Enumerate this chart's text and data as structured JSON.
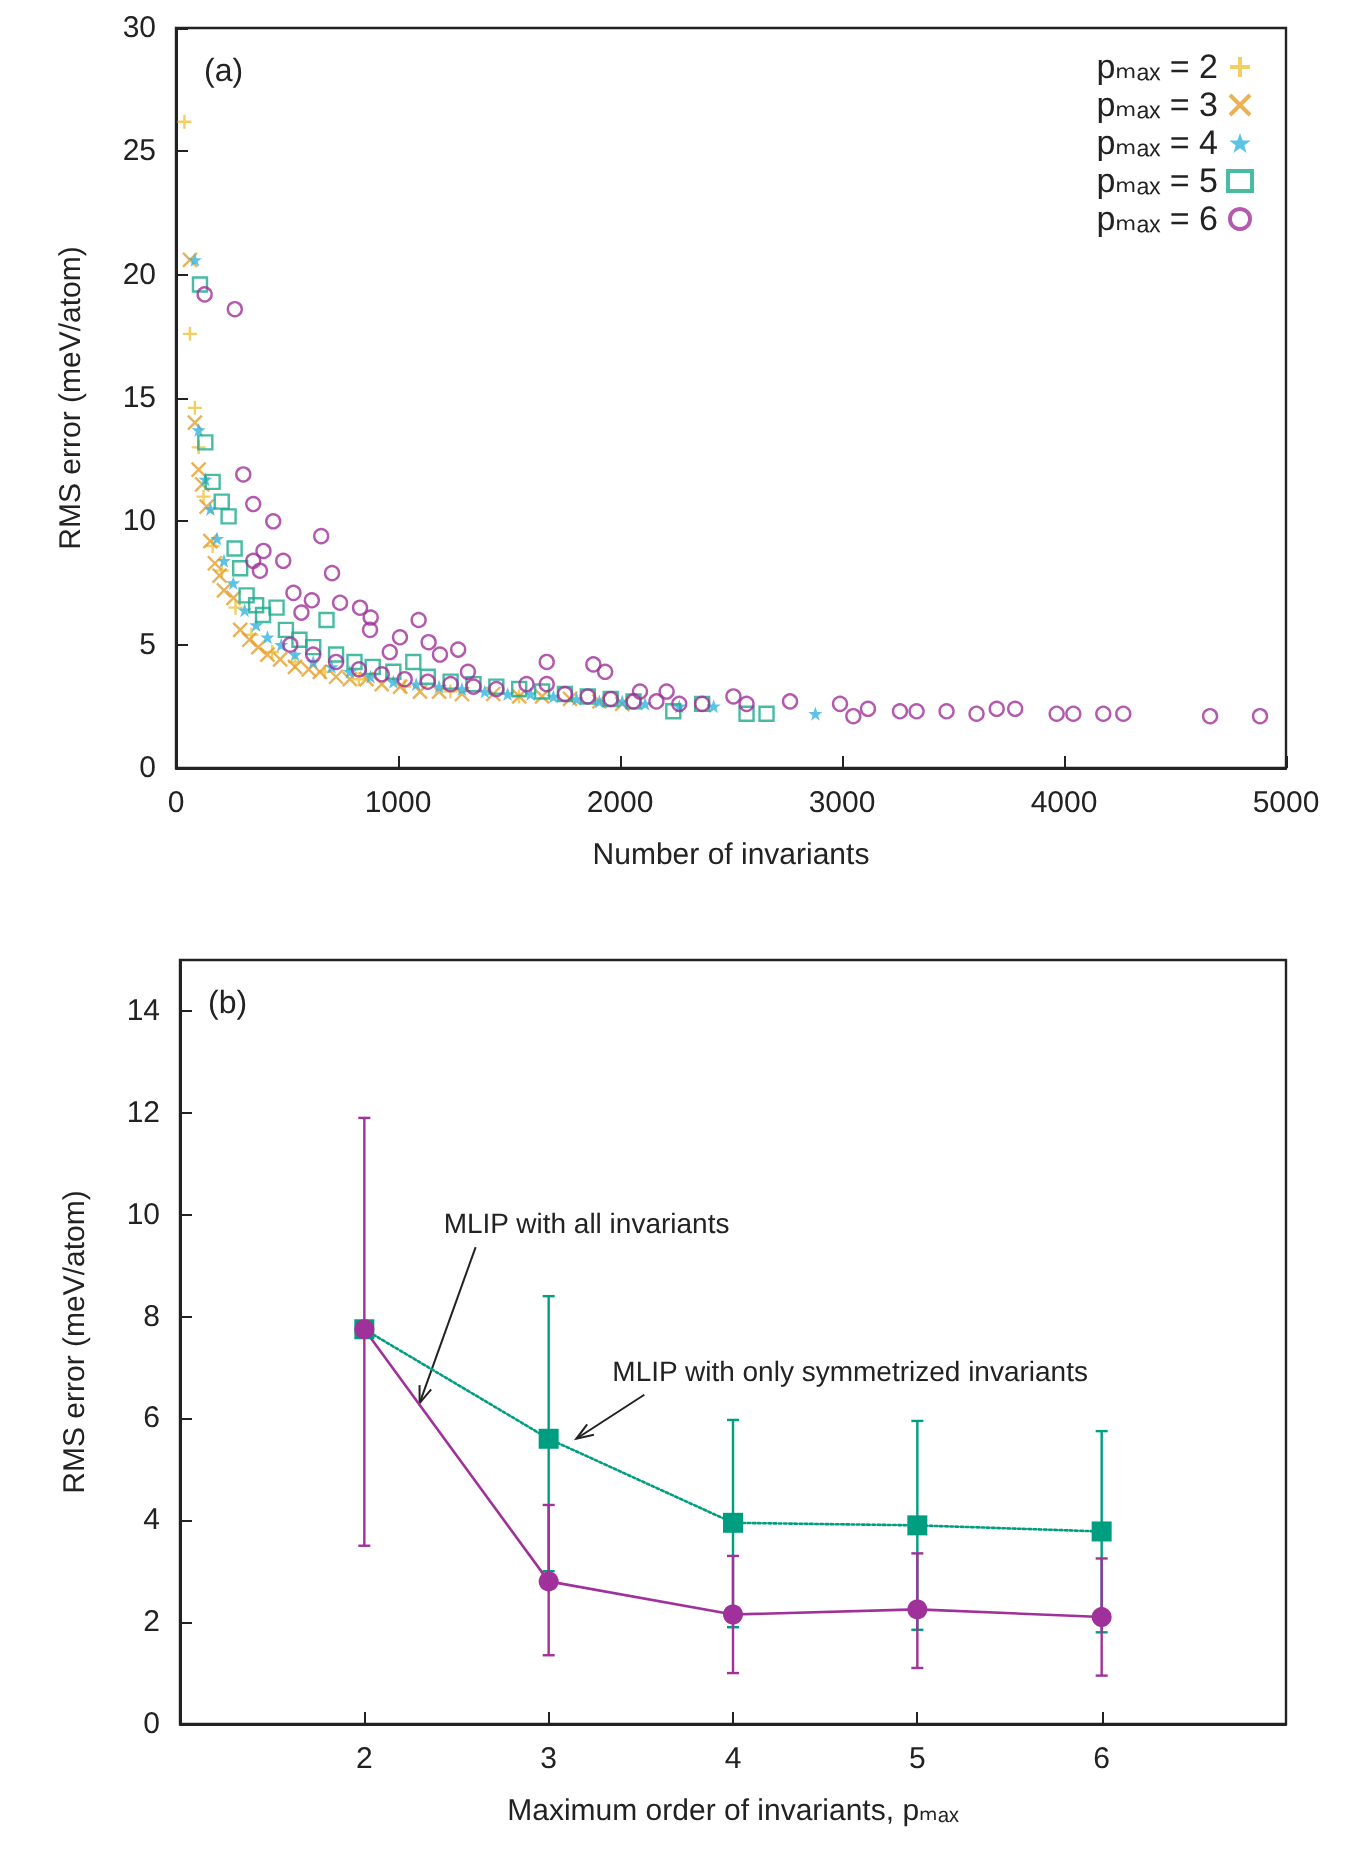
{
  "chart_data": [
    {
      "type": "scatter",
      "xlabel": "Number of invariants",
      "ylabel": "RMS error (meV/atom)",
      "annotations": [
        "(a)"
      ],
      "xlim": [
        0,
        5000
      ],
      "xticks": [
        0,
        1000,
        2000,
        3000,
        4000,
        5000
      ],
      "ylim": [
        0,
        30
      ],
      "yticks": [
        0,
        5,
        10,
        15,
        20,
        25,
        30
      ],
      "grid": false,
      "legend": "top right",
      "series": [
        {
          "name": "pₘₐₓ = 2",
          "color": "#f0c23c",
          "marker": "plus",
          "x": [
            38,
            63,
            85,
            102,
            124,
            165,
            206,
            268,
            340,
            433,
            536,
            670,
            824,
            1030,
            1236,
            1545
          ],
          "values": [
            26.2,
            17.6,
            14.6,
            13.0,
            11.0,
            9.0,
            8.0,
            6.5,
            5.4,
            4.7,
            4.3,
            3.9,
            3.6,
            3.3,
            3.1,
            2.9
          ]
        },
        {
          "name": "pₘₐₓ = 3",
          "color": "#e69f2a",
          "marker": "cross",
          "x": [
            63,
            85,
            102,
            118,
            138,
            155,
            175,
            196,
            216,
            259,
            289,
            330,
            371,
            412,
            469,
            536,
            598,
            648,
            721,
            783,
            858,
            927,
            1010,
            1099,
            1185,
            1288,
            1429,
            1546,
            1649,
            1775,
            1907,
            2010
          ],
          "values": [
            20.6,
            14.0,
            12.1,
            11.5,
            10.6,
            9.2,
            8.3,
            7.8,
            7.2,
            6.9,
            5.6,
            5.2,
            4.9,
            4.6,
            4.4,
            4.1,
            4.0,
            3.9,
            3.7,
            3.6,
            3.6,
            3.4,
            3.3,
            3.1,
            3.1,
            3.0,
            3.0,
            2.9,
            2.9,
            2.8,
            2.7,
            2.6
          ]
        },
        {
          "name": "pₘₐₓ = 4",
          "color": "#35b4e0",
          "marker": "star",
          "x": [
            85,
            102,
            132,
            155,
            185,
            216,
            258,
            309,
            361,
            412,
            474,
            536,
            618,
            701,
            783,
            876,
            979,
            1082,
            1185,
            1288,
            1391,
            1494,
            1597,
            1700,
            1804,
            1907,
            2010,
            2113,
            2267,
            2422,
            2880
          ],
          "values": [
            20.6,
            13.7,
            11.7,
            10.5,
            9.3,
            8.4,
            7.5,
            6.4,
            5.8,
            5.3,
            5.0,
            4.6,
            4.3,
            4.1,
            3.9,
            3.7,
            3.5,
            3.4,
            3.3,
            3.2,
            3.1,
            3.0,
            3.0,
            2.9,
            2.8,
            2.7,
            2.7,
            2.6,
            2.5,
            2.5,
            2.2
          ]
        },
        {
          "name": "pₘₐₓ = 5",
          "color": "#1aaa8c",
          "marker": "square",
          "x": [
            108,
            132,
            165,
            206,
            237,
            264,
            289,
            318,
            361,
            392,
            453,
            495,
            556,
            618,
            678,
            721,
            804,
            886,
            979,
            1069,
            1134,
            1237,
            1340,
            1443,
            1546,
            1649,
            1752,
            1855,
            1958,
            2061,
            2240,
            2370,
            2570,
            2660
          ],
          "values": [
            19.6,
            13.2,
            11.6,
            10.8,
            10.2,
            8.9,
            8.1,
            7.0,
            6.6,
            6.2,
            6.5,
            5.6,
            5.2,
            4.9,
            6.0,
            4.6,
            4.3,
            4.1,
            3.9,
            4.3,
            3.7,
            3.5,
            3.4,
            3.3,
            3.2,
            3.1,
            3.0,
            2.9,
            2.8,
            2.7,
            2.3,
            2.6,
            2.2,
            2.2
          ]
        },
        {
          "name": "pₘₐₓ = 6",
          "color": "#a0309a",
          "marker": "circle",
          "x": [
            129,
            265,
            303,
            348,
            438,
            654,
            394,
            483,
            348,
            378,
            703,
            529,
            612,
            739,
            829,
            565,
            877,
            1093,
            874,
            1009,
            1138,
            1271,
            963,
            1189,
            1670,
            1880,
            1315,
            1933,
            1579,
            1670,
            2090,
            2210,
            2511,
            515,
            618,
            721,
            824,
            927,
            1030,
            1134,
            1237,
            1340,
            1443,
            1752,
            1855,
            1958,
            2061,
            2164,
            2267,
            2370,
            2570,
            2766,
            2991,
            3051,
            3117,
            3261,
            3336,
            3471,
            3606,
            3697,
            3780,
            3967,
            4042,
            4177,
            4267,
            4658,
            4883
          ],
          "values": [
            19.2,
            18.6,
            11.9,
            10.7,
            10.0,
            9.4,
            8.8,
            8.4,
            8.4,
            8.0,
            7.9,
            7.1,
            6.8,
            6.7,
            6.5,
            6.3,
            6.1,
            6.0,
            5.6,
            5.3,
            5.1,
            4.8,
            4.7,
            4.6,
            4.3,
            4.2,
            3.9,
            3.9,
            3.4,
            3.4,
            3.1,
            3.1,
            2.9,
            5.0,
            4.6,
            4.3,
            4.0,
            3.8,
            3.6,
            3.5,
            3.4,
            3.3,
            3.2,
            3.0,
            2.9,
            2.8,
            2.7,
            2.7,
            2.6,
            2.6,
            2.6,
            2.7,
            2.6,
            2.1,
            2.4,
            2.3,
            2.3,
            2.3,
            2.2,
            2.4,
            2.4,
            2.2,
            2.2,
            2.2,
            2.2,
            2.1,
            2.1
          ]
        }
      ]
    },
    {
      "type": "line",
      "xlabel": "Maximum order of invariants, pₘₐₓ",
      "ylabel": "RMS error (meV/atom)",
      "xlim": [
        1,
        7
      ],
      "xticks": [
        2,
        3,
        4,
        5,
        6
      ],
      "ylim": [
        0,
        15
      ],
      "yticks": [
        0,
        2,
        4,
        6,
        8,
        10,
        12,
        14
      ],
      "grid": false,
      "legend": false,
      "x": [
        2,
        3,
        4,
        5,
        6
      ],
      "annotations": [
        "(b)",
        {
          "text": "MLIP with all invariants",
          "x": 2.3,
          "y": 6.3
        },
        {
          "text": "MLIP with only symmetrized invariants",
          "x": 3.15,
          "y": 5.6
        }
      ],
      "series": [
        {
          "color": "#009e80",
          "marker": "square",
          "line_style": "dotted",
          "values": [
            7.75,
            5.6,
            3.95,
            3.9,
            3.78
          ],
          "errors": [
            null,
            [
              3.0,
              8.4
            ],
            [
              1.9,
              5.97
            ],
            [
              1.85,
              5.95
            ],
            [
              1.8,
              5.75
            ]
          ]
        },
        {
          "color": "#a0309a",
          "marker": "circle",
          "line_style": "solid",
          "values": [
            7.75,
            2.8,
            2.15,
            2.25,
            2.1
          ],
          "errors": [
            [
              3.5,
              11.9
            ],
            [
              1.35,
              4.3
            ],
            [
              1.0,
              3.3
            ],
            [
              1.1,
              3.35
            ],
            [
              0.95,
              3.25
            ]
          ]
        }
      ]
    }
  ]
}
